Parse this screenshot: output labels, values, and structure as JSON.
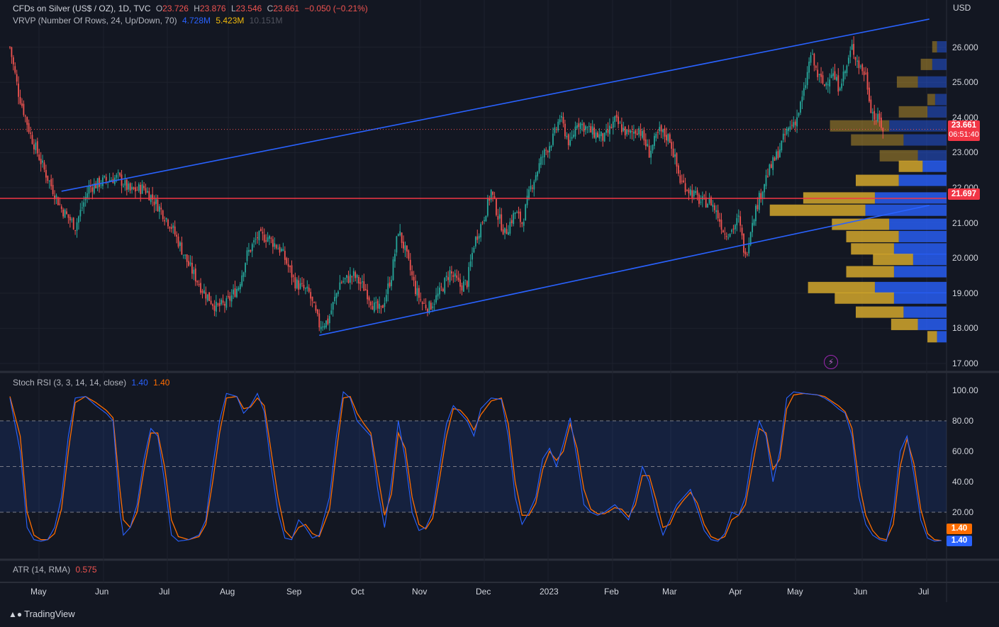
{
  "header": {
    "symbol": "CFDs on Silver (US$ / OZ), 1D, TVC",
    "open_label": "O",
    "open": "23.726",
    "high_label": "H",
    "high": "23.876",
    "low_label": "L",
    "low": "23.546",
    "close_label": "C",
    "close": "23.661",
    "change": "−0.050 (−0.21%)",
    "vrvp_title": "VRVP (Number Of Rows, 24, Up/Down, 70)",
    "vrvp_up": "4.728M",
    "vrvp_down": "5.423M",
    "vrvp_total": "10.151M"
  },
  "price_axis": {
    "currency": "USD",
    "ticks": [
      "26.000",
      "25.000",
      "24.000",
      "23.000",
      "22.000",
      "21.000",
      "20.000",
      "19.000",
      "18.000",
      "17.000"
    ]
  },
  "badges": {
    "last_price": "23.661",
    "countdown": "06:51:40",
    "hline_price": "21.697",
    "stoch_k": "1.40",
    "stoch_d": "1.40"
  },
  "stoch": {
    "title": "Stoch RSI (3, 3, 14, 14, close)",
    "k_value": "1.40",
    "d_value": "1.40",
    "ticks": [
      "100.00",
      "80.00",
      "60.00",
      "40.00",
      "20.00"
    ]
  },
  "atr": {
    "title": "ATR (14, RMA)",
    "value": "0.575"
  },
  "time_axis": [
    "May",
    "Jun",
    "Jul",
    "Aug",
    "Sep",
    "Oct",
    "Nov",
    "Dec",
    "2023",
    "Feb",
    "Mar",
    "Apr",
    "May",
    "Jun",
    "Jul"
  ],
  "branding": "TradingView",
  "colors": {
    "up": "#26a69a",
    "down": "#ef5350",
    "k": "#2962ff",
    "d": "#ff6d00",
    "trend": "#2962ff",
    "hline": "#f23645",
    "vol_up": "#2962ff",
    "vol_down": "#d4a72c"
  },
  "chart_data": {
    "type": "candlestick",
    "price_range": [
      16.8,
      27.1
    ],
    "close_path": [
      [
        0,
        26.0
      ],
      [
        5,
        24.7
      ],
      [
        12,
        23.5
      ],
      [
        20,
        22.5
      ],
      [
        30,
        21.4
      ],
      [
        38,
        20.9
      ],
      [
        46,
        22.0
      ],
      [
        55,
        22.2
      ],
      [
        63,
        22.3
      ],
      [
        70,
        21.9
      ],
      [
        78,
        22.0
      ],
      [
        86,
        21.5
      ],
      [
        94,
        20.9
      ],
      [
        104,
        19.8
      ],
      [
        112,
        19.1
      ],
      [
        120,
        18.6
      ],
      [
        126,
        18.7
      ],
      [
        133,
        19.2
      ],
      [
        138,
        20.1
      ],
      [
        144,
        20.6
      ],
      [
        150,
        20.6
      ],
      [
        158,
        20.2
      ],
      [
        166,
        19.3
      ],
      [
        174,
        19.0
      ],
      [
        180,
        18.1
      ],
      [
        185,
        18.2
      ],
      [
        192,
        19.3
      ],
      [
        200,
        19.5
      ],
      [
        207,
        19.1
      ],
      [
        212,
        18.6
      ],
      [
        216,
        18.5
      ],
      [
        222,
        19.5
      ],
      [
        226,
        20.8
      ],
      [
        230,
        20.2
      ],
      [
        236,
        19.1
      ],
      [
        240,
        18.7
      ],
      [
        244,
        18.6
      ],
      [
        250,
        19.0
      ],
      [
        256,
        19.6
      ],
      [
        262,
        19.2
      ],
      [
        266,
        19.3
      ],
      [
        270,
        20.4
      ],
      [
        276,
        21.2
      ],
      [
        280,
        21.9
      ],
      [
        284,
        21.2
      ],
      [
        288,
        20.7
      ],
      [
        294,
        21.3
      ],
      [
        298,
        21.0
      ],
      [
        303,
        22.0
      ],
      [
        310,
        22.9
      ],
      [
        316,
        23.4
      ],
      [
        320,
        24.0
      ],
      [
        326,
        23.2
      ],
      [
        330,
        23.9
      ],
      [
        338,
        23.6
      ],
      [
        346,
        23.4
      ],
      [
        352,
        23.9
      ],
      [
        360,
        23.5
      ],
      [
        366,
        23.7
      ],
      [
        372,
        23.0
      ],
      [
        378,
        23.6
      ],
      [
        384,
        23.4
      ],
      [
        390,
        22.2
      ],
      [
        396,
        21.9
      ],
      [
        402,
        21.6
      ],
      [
        408,
        21.6
      ],
      [
        412,
        21.2
      ],
      [
        416,
        20.7
      ],
      [
        420,
        20.8
      ],
      [
        424,
        21.1
      ],
      [
        428,
        20.0
      ],
      [
        432,
        21.1
      ],
      [
        436,
        21.7
      ],
      [
        440,
        22.3
      ],
      [
        446,
        22.9
      ],
      [
        452,
        23.6
      ],
      [
        458,
        24.0
      ],
      [
        462,
        24.7
      ],
      [
        466,
        25.8
      ],
      [
        470,
        25.2
      ],
      [
        474,
        24.9
      ],
      [
        478,
        25.3
      ],
      [
        482,
        24.9
      ],
      [
        486,
        25.3
      ],
      [
        490,
        26.0
      ],
      [
        494,
        25.5
      ],
      [
        498,
        25.2
      ],
      [
        501,
        24.3
      ],
      [
        503,
        24.0
      ],
      [
        506,
        23.9
      ],
      [
        508,
        23.66
      ]
    ],
    "trendlines": [
      {
        "from": [
          30,
          21.9
        ],
        "to": [
          535,
          26.8
        ]
      },
      {
        "from": [
          180,
          17.8
        ],
        "to": [
          535,
          21.5
        ]
      }
    ],
    "horizontal_line": 21.697,
    "last_price": 23.661,
    "volume_profile": [
      {
        "price": 26.0,
        "up": 0.1,
        "down": 0.05
      },
      {
        "price": 25.5,
        "up": 0.15,
        "down": 0.12
      },
      {
        "price": 25.0,
        "up": 0.3,
        "down": 0.22
      },
      {
        "price": 24.5,
        "up": 0.12,
        "down": 0.08
      },
      {
        "price": 24.15,
        "up": 0.2,
        "down": 0.3
      },
      {
        "price": 23.75,
        "up": 0.6,
        "down": 0.62
      },
      {
        "price": 23.35,
        "up": 0.45,
        "down": 0.55
      },
      {
        "price": 22.9,
        "up": 0.3,
        "down": 0.4
      },
      {
        "price": 22.6,
        "up": 0.25,
        "down": 0.25
      },
      {
        "price": 22.2,
        "up": 0.5,
        "down": 0.45
      },
      {
        "price": 21.7,
        "up": 0.75,
        "down": 0.75
      },
      {
        "price": 21.35,
        "up": 0.85,
        "down": 1.0
      },
      {
        "price": 20.95,
        "up": 0.6,
        "down": 0.6
      },
      {
        "price": 20.6,
        "up": 0.5,
        "down": 0.55
      },
      {
        "price": 20.25,
        "up": 0.55,
        "down": 0.45
      },
      {
        "price": 19.95,
        "up": 0.35,
        "down": 0.42
      },
      {
        "price": 19.6,
        "up": 0.55,
        "down": 0.5
      },
      {
        "price": 19.15,
        "up": 0.75,
        "down": 0.7
      },
      {
        "price": 18.85,
        "up": 0.55,
        "down": 0.62
      },
      {
        "price": 18.45,
        "up": 0.45,
        "down": 0.5
      },
      {
        "price": 18.1,
        "up": 0.3,
        "down": 0.28
      },
      {
        "price": 17.75,
        "up": 0.1,
        "down": 0.1
      }
    ],
    "stoch_range": [
      0,
      100
    ],
    "stoch_k_path": [
      [
        0,
        95
      ],
      [
        6,
        60
      ],
      [
        10,
        10
      ],
      [
        14,
        2
      ],
      [
        18,
        1
      ],
      [
        22,
        2
      ],
      [
        26,
        10
      ],
      [
        30,
        30
      ],
      [
        34,
        70
      ],
      [
        38,
        95
      ],
      [
        44,
        96
      ],
      [
        50,
        90
      ],
      [
        56,
        85
      ],
      [
        60,
        80
      ],
      [
        64,
        20
      ],
      [
        66,
        5
      ],
      [
        70,
        10
      ],
      [
        74,
        25
      ],
      [
        78,
        55
      ],
      [
        82,
        75
      ],
      [
        86,
        70
      ],
      [
        90,
        40
      ],
      [
        94,
        5
      ],
      [
        98,
        1
      ],
      [
        104,
        2
      ],
      [
        110,
        5
      ],
      [
        114,
        15
      ],
      [
        118,
        50
      ],
      [
        122,
        80
      ],
      [
        126,
        98
      ],
      [
        132,
        96
      ],
      [
        136,
        85
      ],
      [
        140,
        90
      ],
      [
        144,
        98
      ],
      [
        148,
        86
      ],
      [
        152,
        50
      ],
      [
        156,
        20
      ],
      [
        160,
        3
      ],
      [
        164,
        2
      ],
      [
        168,
        15
      ],
      [
        172,
        10
      ],
      [
        176,
        3
      ],
      [
        180,
        5
      ],
      [
        186,
        30
      ],
      [
        190,
        70
      ],
      [
        194,
        99
      ],
      [
        198,
        95
      ],
      [
        202,
        80
      ],
      [
        206,
        75
      ],
      [
        210,
        70
      ],
      [
        214,
        35
      ],
      [
        218,
        10
      ],
      [
        222,
        40
      ],
      [
        226,
        80
      ],
      [
        230,
        55
      ],
      [
        234,
        20
      ],
      [
        238,
        8
      ],
      [
        242,
        10
      ],
      [
        246,
        20
      ],
      [
        250,
        50
      ],
      [
        254,
        78
      ],
      [
        258,
        90
      ],
      [
        262,
        85
      ],
      [
        266,
        80
      ],
      [
        270,
        70
      ],
      [
        274,
        88
      ],
      [
        280,
        95
      ],
      [
        286,
        94
      ],
      [
        290,
        70
      ],
      [
        294,
        30
      ],
      [
        298,
        12
      ],
      [
        302,
        20
      ],
      [
        306,
        30
      ],
      [
        310,
        55
      ],
      [
        314,
        62
      ],
      [
        318,
        50
      ],
      [
        322,
        65
      ],
      [
        326,
        82
      ],
      [
        330,
        55
      ],
      [
        334,
        25
      ],
      [
        338,
        20
      ],
      [
        342,
        18
      ],
      [
        346,
        20
      ],
      [
        352,
        25
      ],
      [
        356,
        20
      ],
      [
        360,
        15
      ],
      [
        364,
        30
      ],
      [
        368,
        50
      ],
      [
        372,
        40
      ],
      [
        376,
        20
      ],
      [
        380,
        5
      ],
      [
        384,
        15
      ],
      [
        388,
        25
      ],
      [
        392,
        30
      ],
      [
        396,
        35
      ],
      [
        400,
        22
      ],
      [
        404,
        8
      ],
      [
        408,
        2
      ],
      [
        412,
        1
      ],
      [
        416,
        6
      ],
      [
        420,
        20
      ],
      [
        424,
        18
      ],
      [
        428,
        30
      ],
      [
        432,
        60
      ],
      [
        436,
        80
      ],
      [
        440,
        70
      ],
      [
        444,
        40
      ],
      [
        448,
        60
      ],
      [
        452,
        95
      ],
      [
        456,
        99
      ],
      [
        462,
        98
      ],
      [
        470,
        97
      ],
      [
        474,
        95
      ],
      [
        478,
        92
      ],
      [
        482,
        88
      ],
      [
        486,
        85
      ],
      [
        490,
        70
      ],
      [
        494,
        30
      ],
      [
        498,
        12
      ],
      [
        502,
        5
      ],
      [
        506,
        2
      ],
      [
        510,
        1
      ],
      [
        514,
        20
      ],
      [
        518,
        60
      ],
      [
        522,
        70
      ],
      [
        526,
        45
      ],
      [
        530,
        15
      ],
      [
        534,
        3
      ],
      [
        538,
        1
      ],
      [
        542,
        1.4
      ]
    ],
    "stoch_d_path": [
      [
        0,
        96
      ],
      [
        6,
        70
      ],
      [
        10,
        20
      ],
      [
        14,
        5
      ],
      [
        18,
        2
      ],
      [
        22,
        2
      ],
      [
        26,
        6
      ],
      [
        30,
        22
      ],
      [
        34,
        60
      ],
      [
        38,
        92
      ],
      [
        44,
        96
      ],
      [
        50,
        92
      ],
      [
        56,
        87
      ],
      [
        60,
        82
      ],
      [
        64,
        35
      ],
      [
        66,
        15
      ],
      [
        70,
        10
      ],
      [
        74,
        20
      ],
      [
        78,
        48
      ],
      [
        82,
        72
      ],
      [
        86,
        72
      ],
      [
        90,
        50
      ],
      [
        94,
        15
      ],
      [
        98,
        4
      ],
      [
        104,
        2
      ],
      [
        110,
        4
      ],
      [
        114,
        12
      ],
      [
        118,
        40
      ],
      [
        122,
        72
      ],
      [
        126,
        95
      ],
      [
        132,
        96
      ],
      [
        136,
        88
      ],
      [
        140,
        89
      ],
      [
        144,
        95
      ],
      [
        148,
        90
      ],
      [
        152,
        60
      ],
      [
        156,
        30
      ],
      [
        160,
        8
      ],
      [
        164,
        3
      ],
      [
        168,
        10
      ],
      [
        172,
        12
      ],
      [
        176,
        6
      ],
      [
        180,
        4
      ],
      [
        186,
        22
      ],
      [
        190,
        60
      ],
      [
        194,
        95
      ],
      [
        198,
        96
      ],
      [
        202,
        85
      ],
      [
        206,
        78
      ],
      [
        210,
        72
      ],
      [
        214,
        45
      ],
      [
        218,
        18
      ],
      [
        222,
        32
      ],
      [
        226,
        72
      ],
      [
        230,
        62
      ],
      [
        234,
        30
      ],
      [
        238,
        12
      ],
      [
        242,
        9
      ],
      [
        246,
        16
      ],
      [
        250,
        42
      ],
      [
        254,
        70
      ],
      [
        258,
        88
      ],
      [
        262,
        87
      ],
      [
        266,
        82
      ],
      [
        270,
        74
      ],
      [
        274,
        84
      ],
      [
        280,
        93
      ],
      [
        286,
        95
      ],
      [
        290,
        78
      ],
      [
        294,
        40
      ],
      [
        298,
        18
      ],
      [
        302,
        18
      ],
      [
        306,
        26
      ],
      [
        310,
        48
      ],
      [
        314,
        60
      ],
      [
        318,
        54
      ],
      [
        322,
        60
      ],
      [
        326,
        78
      ],
      [
        330,
        62
      ],
      [
        334,
        35
      ],
      [
        338,
        22
      ],
      [
        342,
        19
      ],
      [
        346,
        19
      ],
      [
        352,
        23
      ],
      [
        356,
        22
      ],
      [
        360,
        17
      ],
      [
        364,
        25
      ],
      [
        368,
        44
      ],
      [
        372,
        44
      ],
      [
        376,
        28
      ],
      [
        380,
        10
      ],
      [
        384,
        12
      ],
      [
        388,
        22
      ],
      [
        392,
        28
      ],
      [
        396,
        33
      ],
      [
        400,
        26
      ],
      [
        404,
        12
      ],
      [
        408,
        4
      ],
      [
        412,
        2
      ],
      [
        416,
        4
      ],
      [
        420,
        15
      ],
      [
        424,
        18
      ],
      [
        428,
        25
      ],
      [
        432,
        50
      ],
      [
        436,
        75
      ],
      [
        440,
        72
      ],
      [
        444,
        48
      ],
      [
        448,
        55
      ],
      [
        452,
        88
      ],
      [
        456,
        97
      ],
      [
        462,
        98
      ],
      [
        470,
        97
      ],
      [
        474,
        96
      ],
      [
        478,
        93
      ],
      [
        482,
        90
      ],
      [
        486,
        86
      ],
      [
        490,
        75
      ],
      [
        494,
        40
      ],
      [
        498,
        18
      ],
      [
        502,
        8
      ],
      [
        506,
        3
      ],
      [
        510,
        2
      ],
      [
        514,
        12
      ],
      [
        518,
        50
      ],
      [
        522,
        68
      ],
      [
        526,
        52
      ],
      [
        530,
        22
      ],
      [
        534,
        6
      ],
      [
        538,
        2
      ],
      [
        542,
        1.4
      ]
    ]
  }
}
